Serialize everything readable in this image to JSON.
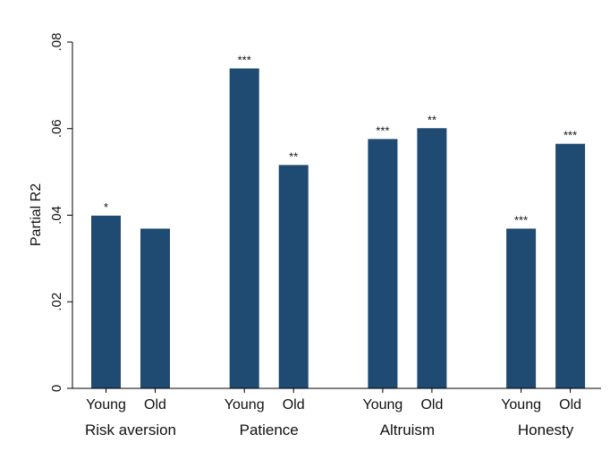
{
  "chart_data": {
    "type": "bar",
    "title": "",
    "xlabel": "",
    "ylabel": "Partial R2",
    "ylim": [
      0,
      0.08
    ],
    "yticks": [
      0,
      0.02,
      0.04,
      0.06,
      0.08
    ],
    "ytick_labels": [
      "0",
      ".02",
      ".04",
      ".06",
      ".08"
    ],
    "grid": false,
    "legend": "none",
    "bar_color": "#1f4a72",
    "groups": [
      {
        "label": "Risk aversion",
        "bars": [
          {
            "category": "Young",
            "value": 0.0399,
            "significance": "*"
          },
          {
            "category": "Old",
            "value": 0.0369,
            "significance": ""
          }
        ]
      },
      {
        "label": "Patience",
        "bars": [
          {
            "category": "Young",
            "value": 0.0739,
            "significance": "***"
          },
          {
            "category": "Old",
            "value": 0.0516,
            "significance": "**"
          }
        ]
      },
      {
        "label": "Altruism",
        "bars": [
          {
            "category": "Young",
            "value": 0.0576,
            "significance": "***"
          },
          {
            "category": "Old",
            "value": 0.0601,
            "significance": "**"
          }
        ]
      },
      {
        "label": "Honesty",
        "bars": [
          {
            "category": "Young",
            "value": 0.0369,
            "significance": "***"
          },
          {
            "category": "Old",
            "value": 0.0565,
            "significance": "***"
          }
        ]
      }
    ]
  }
}
